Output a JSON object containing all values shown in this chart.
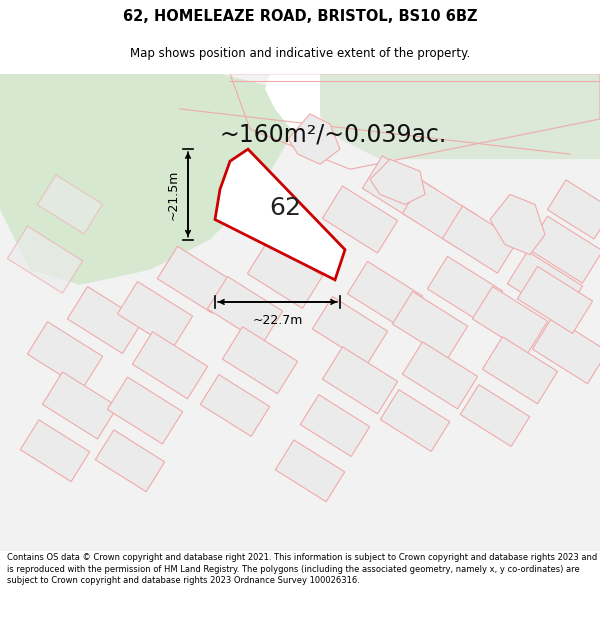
{
  "title": "62, HOMELEAZE ROAD, BRISTOL, BS10 6BZ",
  "subtitle": "Map shows position and indicative extent of the property.",
  "area_text": "~160m²/~0.039ac.",
  "dim_width": "~22.7m",
  "dim_height": "~21.5m",
  "label": "62",
  "footer": "Contains OS data © Crown copyright and database right 2021. This information is subject to Crown copyright and database rights 2023 and is reproduced with the permission of HM Land Registry. The polygons (including the associated geometry, namely x, y co-ordinates) are subject to Crown copyright and database rights 2023 Ordnance Survey 100026316.",
  "map_bg": "#f5f5f5",
  "green_area_color": "#d6e8d0",
  "green_road_color": "#dce8d8",
  "plot_outline_color": "#cc0000",
  "neighbor_outline_color": "#f0aaaa",
  "neighbor_fill_color": "#ebebeb",
  "road_color": "#ffffff",
  "white_bg": "#ffffff",
  "gray_fill": "#d8d8d8",
  "inner_fill": "#e0e0e0"
}
